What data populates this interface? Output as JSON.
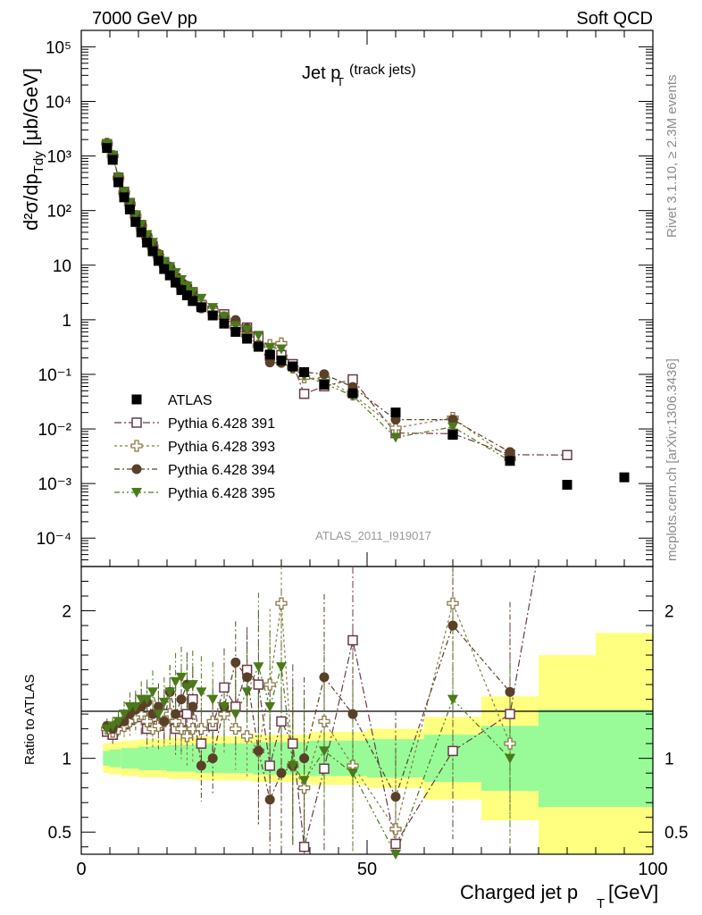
{
  "header": {
    "beam": "7000 GeV pp",
    "process": "Soft QCD"
  },
  "side": {
    "rivet": "Rivet 3.1.10, ≥ 2.3M events",
    "mcplots": "mcplots.cern.ch [arXiv:1306.3436]"
  },
  "chart_data": {
    "type": "scatter",
    "title": "Jet p",
    "title_sub": "T",
    "title_note": "(track jets)",
    "analysis_id": "ATLAS_2011_I919017",
    "ylabel_main": "d²σ/dp",
    "ylabel_sub": "Tdy",
    "ylabel_unit": "[μb/GeV]",
    "ylabel_ratio": "Ratio to ATLAS",
    "xlabel": "Charged jet p",
    "xlabel_sub": "T",
    "xlabel_unit": "[GeV]",
    "xlim": [
      0,
      100
    ],
    "ylim_main": [
      3e-05,
      200000
    ],
    "ylim_ratio": [
      0.35,
      2.3
    ],
    "yscale_main": "log",
    "x_ticks": [
      "0",
      "50",
      "100"
    ],
    "y_ticks_main": [
      "10⁻⁴",
      "10⁻³",
      "10⁻²",
      "10⁻¹",
      "1",
      "10",
      "10²",
      "10³",
      "10⁴",
      "10⁵"
    ],
    "y_ticks_ratio": [
      "0.5",
      "1",
      "2"
    ],
    "legend_position": "bottom-left",
    "colors": {
      "data": "#000000",
      "p391": "#6b3a4a",
      "p393": "#8a7a4a",
      "p394": "#5a4028",
      "p395": "#4a7a1a",
      "band_inner": "#98fb98",
      "band_outer": "#ffff80"
    },
    "data": {
      "name": "ATLAS",
      "x": [
        4.5,
        5.5,
        6.5,
        7.5,
        8.5,
        9.5,
        10.5,
        11.5,
        12.5,
        13.5,
        14.5,
        15.5,
        16.5,
        17.5,
        18.5,
        19.5,
        21,
        23,
        25,
        27,
        29,
        31,
        33,
        35,
        37,
        39,
        42.5,
        47.5,
        55,
        65,
        75,
        85,
        95
      ],
      "y": [
        1400,
        850,
        330,
        175,
        105,
        62,
        40,
        26,
        18,
        12,
        8.5,
        6.5,
        4.8,
        3.5,
        2.8,
        2.2,
        1.7,
        1.2,
        0.85,
        0.6,
        0.45,
        0.32,
        0.23,
        0.18,
        0.14,
        0.11,
        0.065,
        0.045,
        0.02,
        0.0078,
        0.0026,
        0.00095,
        0.0013
      ]
    },
    "series": [
      {
        "name": "Pythia 6.428 391",
        "ratio": [
          1.18,
          1.16,
          1.22,
          1.23,
          1.26,
          1.3,
          1.28,
          1.2,
          1.25,
          1.22,
          1.3,
          1.28,
          1.2,
          1.25,
          1.3,
          1.4,
          1.1,
          1.22,
          1.48,
          1.35,
          1.6,
          1.5,
          0.95,
          1.25,
          1.1,
          0.4,
          0.93,
          1.8,
          0.42,
          1.05,
          1.3,
          3.5,
          null
        ]
      },
      {
        "name": "Pythia 6.428 393",
        "ratio": [
          1.2,
          1.18,
          1.2,
          1.22,
          1.25,
          1.28,
          1.3,
          1.25,
          1.2,
          1.22,
          1.25,
          1.3,
          1.25,
          1.2,
          1.15,
          1.2,
          1.2,
          1.25,
          1.3,
          1.2,
          1.15,
          1.05,
          1.5,
          2.05,
          0.95,
          0.8,
          1.25,
          0.95,
          0.52,
          2.05,
          1.1,
          null,
          null
        ]
      },
      {
        "name": "Pythia 6.428 394",
        "ratio": [
          1.22,
          1.2,
          1.24,
          1.25,
          1.3,
          1.33,
          1.35,
          1.38,
          1.3,
          1.35,
          1.25,
          1.45,
          1.3,
          1.4,
          1.5,
          1.35,
          0.95,
          1.0,
          1.35,
          1.65,
          1.55,
          1.05,
          0.72,
          0.9,
          0.95,
          1.0,
          1.55,
          1.3,
          0.74,
          1.9,
          1.45,
          null,
          null
        ]
      },
      {
        "name": "Pythia 6.428 395",
        "ratio": [
          1.2,
          1.22,
          1.25,
          1.3,
          1.35,
          1.35,
          1.4,
          1.4,
          1.45,
          1.3,
          1.38,
          1.45,
          1.52,
          1.55,
          1.48,
          1.5,
          1.45,
          1.4,
          1.35,
          1.3,
          1.45,
          1.62,
          1.35,
          1.62,
          0.95,
          0.85,
          1.05,
          0.9,
          0.35,
          1.4,
          1.0,
          null,
          null
        ]
      }
    ],
    "band_bins": [
      3.8,
      5,
      7,
      10,
      15,
      20,
      30,
      40,
      50,
      60,
      70,
      80,
      90,
      100
    ],
    "band_inner_half": [
      0.05,
      0.06,
      0.07,
      0.08,
      0.09,
      0.1,
      0.11,
      0.12,
      0.13,
      0.16,
      0.22,
      0.33,
      0.33
    ],
    "band_outer_half": [
      0.1,
      0.11,
      0.12,
      0.13,
      0.14,
      0.15,
      0.16,
      0.18,
      0.2,
      0.28,
      0.42,
      0.7,
      0.85
    ]
  }
}
